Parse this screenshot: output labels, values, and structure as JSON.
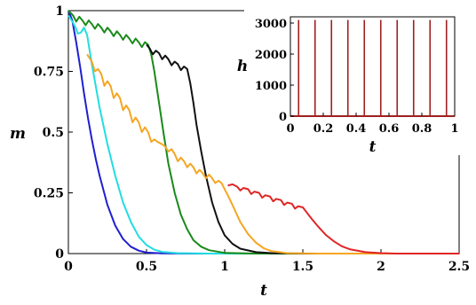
{
  "chart_data": [
    {
      "type": "line",
      "xlabel": "t",
      "ylabel": "m",
      "xlim": [
        0,
        2.5
      ],
      "ylim": [
        0,
        1
      ],
      "x_ticks": [
        "0",
        "0.5",
        "1",
        "1.5",
        "2",
        "2.5"
      ],
      "y_ticks": [
        "0",
        "0.25",
        "0.5",
        "0.75",
        "1"
      ],
      "grid": false,
      "legend": "none",
      "series": [
        {
          "color": "#1f1fd0",
          "points": [
            [
              0,
              1
            ],
            [
              0.025,
              0.96
            ],
            [
              0.05,
              0.87
            ],
            [
              0.075,
              0.77
            ],
            [
              0.1,
              0.66
            ],
            [
              0.125,
              0.56
            ],
            [
              0.15,
              0.47
            ],
            [
              0.175,
              0.39
            ],
            [
              0.2,
              0.32
            ],
            [
              0.25,
              0.2
            ],
            [
              0.3,
              0.115
            ],
            [
              0.35,
              0.06
            ],
            [
              0.4,
              0.028
            ],
            [
              0.45,
              0.012
            ],
            [
              0.5,
              0.004
            ],
            [
              0.6,
              0.001
            ],
            [
              0.8,
              0
            ],
            [
              2.5,
              0
            ]
          ]
        },
        {
          "color": "#22dde0",
          "points": [
            [
              0,
              0.98
            ],
            [
              0.03,
              0.95
            ],
            [
              0.05,
              0.925
            ],
            [
              0.06,
              0.905
            ],
            [
              0.08,
              0.91
            ],
            [
              0.1,
              0.93
            ],
            [
              0.12,
              0.9
            ],
            [
              0.15,
              0.78
            ],
            [
              0.2,
              0.6
            ],
            [
              0.25,
              0.45
            ],
            [
              0.3,
              0.32
            ],
            [
              0.35,
              0.21
            ],
            [
              0.4,
              0.13
            ],
            [
              0.45,
              0.07
            ],
            [
              0.5,
              0.035
            ],
            [
              0.55,
              0.016
            ],
            [
              0.6,
              0.007
            ],
            [
              0.7,
              0.002
            ],
            [
              0.9,
              0
            ],
            [
              2.5,
              0
            ]
          ]
        },
        {
          "color": "#1a8a1a",
          "points": [
            [
              0,
              1
            ],
            [
              0.03,
              0.98
            ],
            [
              0.05,
              0.955
            ],
            [
              0.07,
              0.975
            ],
            [
              0.09,
              0.96
            ],
            [
              0.11,
              0.94
            ],
            [
              0.13,
              0.96
            ],
            [
              0.15,
              0.945
            ],
            [
              0.17,
              0.925
            ],
            [
              0.19,
              0.945
            ],
            [
              0.21,
              0.93
            ],
            [
              0.23,
              0.91
            ],
            [
              0.25,
              0.93
            ],
            [
              0.27,
              0.915
            ],
            [
              0.29,
              0.895
            ],
            [
              0.31,
              0.915
            ],
            [
              0.33,
              0.9
            ],
            [
              0.35,
              0.88
            ],
            [
              0.37,
              0.9
            ],
            [
              0.39,
              0.885
            ],
            [
              0.41,
              0.865
            ],
            [
              0.43,
              0.885
            ],
            [
              0.45,
              0.87
            ],
            [
              0.47,
              0.85
            ],
            [
              0.49,
              0.87
            ],
            [
              0.51,
              0.86
            ],
            [
              0.53,
              0.82
            ],
            [
              0.55,
              0.75
            ],
            [
              0.58,
              0.62
            ],
            [
              0.61,
              0.49
            ],
            [
              0.64,
              0.37
            ],
            [
              0.68,
              0.25
            ],
            [
              0.72,
              0.16
            ],
            [
              0.76,
              0.1
            ],
            [
              0.8,
              0.055
            ],
            [
              0.85,
              0.028
            ],
            [
              0.9,
              0.014
            ],
            [
              1,
              0.003
            ],
            [
              1.2,
              0
            ],
            [
              2.5,
              0
            ]
          ]
        },
        {
          "color": "#111111",
          "points": [
            [
              0.5,
              0.86
            ],
            [
              0.52,
              0.845
            ],
            [
              0.54,
              0.82
            ],
            [
              0.56,
              0.835
            ],
            [
              0.58,
              0.825
            ],
            [
              0.6,
              0.8
            ],
            [
              0.62,
              0.815
            ],
            [
              0.64,
              0.8
            ],
            [
              0.66,
              0.775
            ],
            [
              0.68,
              0.79
            ],
            [
              0.7,
              0.78
            ],
            [
              0.72,
              0.755
            ],
            [
              0.74,
              0.77
            ],
            [
              0.76,
              0.76
            ],
            [
              0.78,
              0.7
            ],
            [
              0.8,
              0.62
            ],
            [
              0.82,
              0.53
            ],
            [
              0.85,
              0.42
            ],
            [
              0.88,
              0.32
            ],
            [
              0.92,
              0.21
            ],
            [
              0.96,
              0.13
            ],
            [
              1,
              0.075
            ],
            [
              1.05,
              0.04
            ],
            [
              1.1,
              0.02
            ],
            [
              1.2,
              0.006
            ],
            [
              1.3,
              0.002
            ],
            [
              1.5,
              0
            ],
            [
              2.5,
              0
            ]
          ]
        },
        {
          "color": "#f5a623",
          "points": [
            [
              0.12,
              0.82
            ],
            [
              0.15,
              0.79
            ],
            [
              0.17,
              0.75
            ],
            [
              0.19,
              0.76
            ],
            [
              0.21,
              0.74
            ],
            [
              0.23,
              0.69
            ],
            [
              0.25,
              0.71
            ],
            [
              0.27,
              0.69
            ],
            [
              0.29,
              0.64
            ],
            [
              0.31,
              0.66
            ],
            [
              0.33,
              0.64
            ],
            [
              0.35,
              0.59
            ],
            [
              0.37,
              0.61
            ],
            [
              0.39,
              0.59
            ],
            [
              0.41,
              0.54
            ],
            [
              0.43,
              0.56
            ],
            [
              0.45,
              0.54
            ],
            [
              0.47,
              0.5
            ],
            [
              0.49,
              0.52
            ],
            [
              0.51,
              0.5
            ],
            [
              0.53,
              0.46
            ],
            [
              0.55,
              0.47
            ],
            [
              0.57,
              0.46
            ],
            [
              0.6,
              0.45
            ],
            [
              0.62,
              0.44
            ],
            [
              0.64,
              0.42
            ],
            [
              0.66,
              0.43
            ],
            [
              0.68,
              0.41
            ],
            [
              0.7,
              0.38
            ],
            [
              0.72,
              0.395
            ],
            [
              0.74,
              0.38
            ],
            [
              0.76,
              0.355
            ],
            [
              0.78,
              0.37
            ],
            [
              0.8,
              0.355
            ],
            [
              0.82,
              0.33
            ],
            [
              0.84,
              0.345
            ],
            [
              0.86,
              0.33
            ],
            [
              0.88,
              0.31
            ],
            [
              0.9,
              0.325
            ],
            [
              0.92,
              0.31
            ],
            [
              0.94,
              0.29
            ],
            [
              0.96,
              0.3
            ],
            [
              0.98,
              0.29
            ],
            [
              1,
              0.265
            ],
            [
              1.02,
              0.24
            ],
            [
              1.05,
              0.2
            ],
            [
              1.1,
              0.13
            ],
            [
              1.15,
              0.08
            ],
            [
              1.2,
              0.045
            ],
            [
              1.25,
              0.022
            ],
            [
              1.3,
              0.01
            ],
            [
              1.4,
              0.002
            ],
            [
              1.6,
              0
            ],
            [
              2.5,
              0
            ]
          ]
        },
        {
          "color": "#e02525",
          "points": [
            [
              1.02,
              0.28
            ],
            [
              1.05,
              0.285
            ],
            [
              1.08,
              0.275
            ],
            [
              1.1,
              0.26
            ],
            [
              1.12,
              0.27
            ],
            [
              1.15,
              0.265
            ],
            [
              1.17,
              0.245
            ],
            [
              1.19,
              0.255
            ],
            [
              1.22,
              0.25
            ],
            [
              1.24,
              0.23
            ],
            [
              1.26,
              0.24
            ],
            [
              1.29,
              0.235
            ],
            [
              1.31,
              0.215
            ],
            [
              1.33,
              0.225
            ],
            [
              1.36,
              0.22
            ],
            [
              1.38,
              0.2
            ],
            [
              1.4,
              0.21
            ],
            [
              1.43,
              0.205
            ],
            [
              1.45,
              0.185
            ],
            [
              1.47,
              0.195
            ],
            [
              1.5,
              0.19
            ],
            [
              1.53,
              0.165
            ],
            [
              1.56,
              0.14
            ],
            [
              1.6,
              0.11
            ],
            [
              1.65,
              0.075
            ],
            [
              1.7,
              0.05
            ],
            [
              1.75,
              0.03
            ],
            [
              1.8,
              0.018
            ],
            [
              1.9,
              0.006
            ],
            [
              2,
              0.002
            ],
            [
              2.1,
              0
            ],
            [
              2.5,
              0
            ]
          ]
        }
      ]
    },
    {
      "type": "line",
      "xlabel": "t",
      "ylabel": "h",
      "xlim": [
        0,
        1
      ],
      "ylim": [
        0,
        3200
      ],
      "x_ticks": [
        "0",
        "0.2",
        "0.4",
        "0.6",
        "0.8",
        "1"
      ],
      "y_ticks": [
        "0",
        "1000",
        "2000",
        "3000"
      ],
      "grid": false,
      "legend": "none",
      "series": [
        {
          "color": "#a02020",
          "spikes_at": [
            0.05,
            0.15,
            0.25,
            0.35,
            0.45,
            0.55,
            0.65,
            0.75,
            0.85,
            0.95
          ],
          "spike_value": 3100,
          "baseline": 0
        }
      ]
    }
  ]
}
